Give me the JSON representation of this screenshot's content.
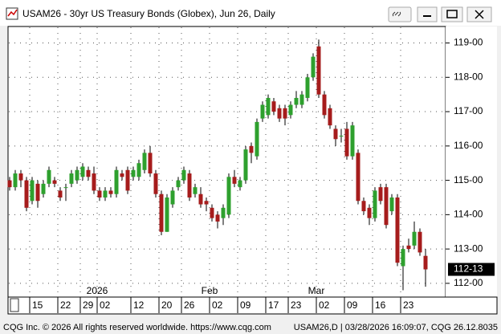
{
  "chart_data": {
    "type": "candlestick",
    "title": "USAM26 - 30yr US Treasury Bonds (Globex), Jun 26, Daily",
    "categories": [
      null,
      null,
      null,
      null,
      "15",
      null,
      null,
      null,
      null,
      "22",
      null,
      null,
      null,
      "29",
      null,
      null,
      "02",
      null,
      null,
      null,
      null,
      null,
      "12",
      null,
      null,
      null,
      null,
      "20",
      null,
      null,
      null,
      "26",
      null,
      null,
      null,
      null,
      "02",
      null,
      null,
      null,
      null,
      "09",
      null,
      null,
      null,
      null,
      "17",
      null,
      null,
      null,
      "23",
      null,
      null,
      null,
      null,
      "02",
      null,
      null,
      null,
      null,
      "09",
      null,
      null,
      null,
      null,
      "16",
      null,
      null,
      null,
      null,
      "23",
      null,
      null,
      null,
      null
    ],
    "periods": [
      null,
      null,
      null,
      null,
      null,
      null,
      null,
      null,
      null,
      null,
      null,
      null,
      null,
      null,
      null,
      null,
      "2026",
      null,
      null,
      null,
      null,
      null,
      null,
      null,
      null,
      null,
      null,
      null,
      null,
      null,
      null,
      null,
      null,
      null,
      null,
      null,
      "Feb",
      null,
      null,
      null,
      null,
      null,
      null,
      null,
      null,
      null,
      null,
      null,
      null,
      null,
      null,
      null,
      null,
      null,
      null,
      "Mar",
      null,
      null,
      null,
      null,
      null,
      null,
      null,
      null,
      null,
      null,
      null,
      null,
      null,
      null,
      null,
      null,
      null,
      null,
      null
    ],
    "open": [
      115.0,
      114.8,
      115.2,
      115.0,
      114.4,
      114.9,
      114.6,
      114.9,
      115.0,
      114.7,
      114.8,
      114.9,
      115.0,
      115.1,
      115.3,
      115.2,
      114.7,
      114.5,
      114.7,
      114.6,
      115.2,
      115.3,
      115.1,
      115.1,
      115.3,
      115.8,
      115.2,
      114.6,
      113.5,
      114.3,
      114.8,
      115.0,
      115.2,
      114.6,
      114.6,
      114.4,
      114.2,
      114.0,
      113.9,
      114.0,
      115.1,
      114.8,
      115.0,
      116.0,
      115.7,
      116.8,
      116.9,
      117.3,
      117.1,
      117.1,
      116.9,
      117.2,
      117.2,
      117.4,
      118.0,
      118.9,
      117.5,
      117.1,
      116.5,
      116.3,
      116.5,
      115.7,
      115.8,
      114.4,
      114.2,
      113.9,
      114.8,
      114.8,
      114.1,
      114.5,
      112.5,
      113.1,
      113.1,
      113.5,
      112.8
    ],
    "high": [
      115.1,
      115.3,
      115.3,
      115.1,
      115.1,
      115.0,
      115.0,
      115.4,
      115.1,
      114.8,
      114.9,
      115.3,
      115.4,
      115.5,
      115.4,
      115.4,
      114.8,
      114.8,
      114.8,
      115.4,
      115.3,
      115.4,
      115.4,
      115.6,
      115.9,
      116.0,
      115.3,
      114.7,
      114.6,
      114.8,
      115.1,
      115.4,
      115.3,
      114.9,
      114.8,
      114.5,
      114.3,
      114.1,
      114.3,
      115.2,
      115.3,
      115.1,
      116.0,
      116.1,
      116.8,
      117.3,
      117.5,
      117.4,
      117.2,
      117.2,
      117.3,
      117.6,
      117.6,
      118.1,
      118.7,
      119.1,
      117.6,
      117.2,
      116.6,
      116.5,
      116.7,
      116.7,
      115.9,
      114.5,
      114.3,
      114.8,
      114.9,
      114.9,
      114.6,
      114.6,
      113.1,
      113.3,
      113.8,
      113.6,
      113.0
    ],
    "low": [
      114.7,
      114.7,
      114.8,
      114.1,
      114.3,
      114.2,
      114.5,
      114.8,
      114.8,
      114.4,
      114.4,
      114.8,
      114.9,
      115.0,
      115.0,
      114.6,
      114.4,
      114.4,
      114.5,
      114.5,
      115.0,
      114.6,
      115.0,
      115.0,
      115.2,
      115.1,
      114.5,
      113.4,
      113.5,
      114.2,
      114.7,
      114.9,
      114.4,
      114.5,
      114.2,
      114.1,
      113.8,
      113.6,
      113.7,
      113.9,
      114.8,
      114.7,
      114.9,
      115.5,
      115.6,
      116.7,
      116.8,
      116.9,
      116.7,
      116.6,
      116.8,
      117.1,
      117.1,
      117.3,
      117.9,
      117.4,
      116.8,
      116.5,
      116.0,
      116.1,
      115.6,
      115.6,
      114.3,
      114.0,
      113.7,
      113.8,
      114.3,
      113.6,
      114.0,
      112.5,
      111.8,
      112.9,
      113.0,
      112.8,
      111.9
    ],
    "close": [
      114.8,
      115.2,
      115.0,
      114.2,
      115.0,
      114.4,
      114.9,
      115.3,
      114.9,
      114.5,
      114.8,
      115.2,
      115.3,
      115.4,
      115.1,
      114.7,
      114.5,
      114.7,
      114.6,
      115.3,
      115.1,
      114.7,
      115.3,
      115.5,
      115.8,
      115.2,
      114.6,
      113.5,
      114.5,
      114.7,
      115.0,
      115.3,
      114.5,
      114.8,
      114.3,
      114.3,
      113.9,
      113.8,
      114.2,
      115.1,
      114.9,
      115.0,
      115.9,
      115.8,
      116.7,
      117.2,
      117.4,
      117.0,
      116.8,
      116.8,
      117.2,
      117.4,
      117.5,
      118.0,
      118.6,
      117.5,
      116.9,
      116.6,
      116.2,
      116.3,
      115.7,
      116.6,
      114.4,
      114.1,
      113.9,
      114.7,
      114.4,
      113.7,
      114.5,
      112.6,
      113.0,
      113.0,
      113.5,
      112.9,
      112.40625
    ],
    "up_color": "#2ea02e",
    "down_color": "#a61c1c",
    "ylim": [
      111.6,
      119.48
    ],
    "yticks": [
      {
        "value": 112,
        "label": "112-00"
      },
      {
        "value": 113,
        "label": "113-00"
      },
      {
        "value": 114,
        "label": "114-00"
      },
      {
        "value": 115,
        "label": "115-00"
      },
      {
        "value": 116,
        "label": "116-00"
      },
      {
        "value": 117,
        "label": "117-00"
      },
      {
        "value": 118,
        "label": "118-00"
      },
      {
        "value": 119,
        "label": "119-00"
      }
    ],
    "last_price": {
      "value": 112.40625,
      "label": "112-13"
    },
    "grid": true
  },
  "footer": {
    "left": "CQG Inc. © 2026 All rights reserved worldwide. https://www.cqg.com",
    "right": "USAM26,D | 03/28/2026 16:09:07, CQG 26.12.8035"
  }
}
